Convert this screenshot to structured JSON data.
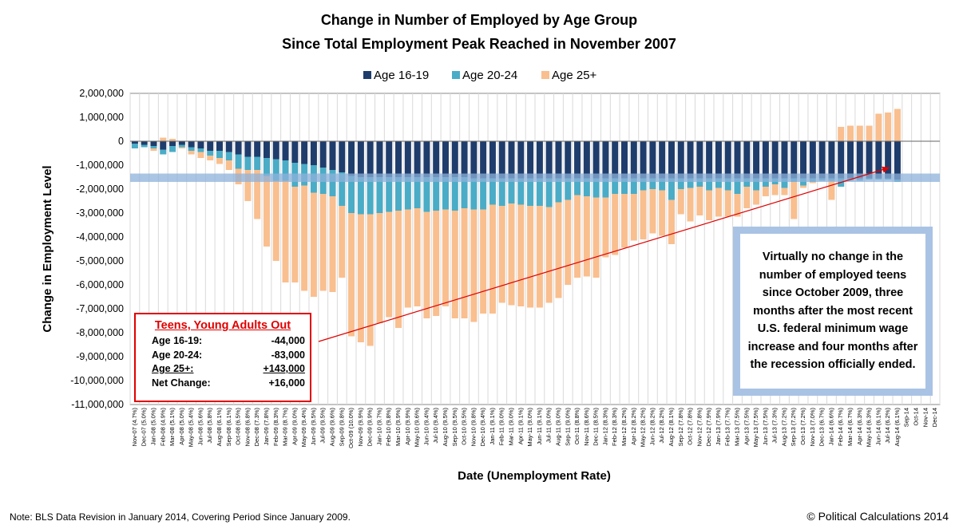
{
  "chart_data": {
    "type": "bar",
    "stacked": true,
    "title_lines": [
      "Change in Number of Employed by Age Group",
      "Since Total Employment Peak Reached in November 2007"
    ],
    "legend": [
      {
        "name": "Age 16-19",
        "color": "#1f3d6c"
      },
      {
        "name": "Age 20-24",
        "color": "#4aacc6"
      },
      {
        "name": "Age 25+",
        "color": "#f9bf8f"
      }
    ],
    "ylabel": "Change in Employment Level",
    "xlabel": "Date (Unemployment Rate)",
    "ylim": [
      -11000000,
      2000000
    ],
    "ytick_step": 1000000,
    "ytick_labels": [
      "2,000,000",
      "1,000,000",
      "0",
      "-1,000,000",
      "-2,000,000",
      "-3,000,000",
      "-4,000,000",
      "-5,000,000",
      "-6,000,000",
      "-7,000,000",
      "-8,000,000",
      "-9,000,000",
      "-10,000,000",
      "-11,000,000"
    ],
    "highlight_band": [
      -1700000,
      -1350000
    ],
    "categories": [
      "Nov-07 (4.7%)",
      "Dec-07 (5.0%)",
      "Jan-08 (5.0%)",
      "Feb-08 (4.9%)",
      "Mar-08 (5.1%)",
      "Apr-08 (5.0%)",
      "May-08 (5.4%)",
      "Jun-08 (5.6%)",
      "Jul-08 (5.8%)",
      "Aug-08 (6.1%)",
      "Sep-08 (6.1%)",
      "Oct-08 (6.5%)",
      "Nov-08 (6.8%)",
      "Dec-08 (7.3%)",
      "Jan-09 (7.8%)",
      "Feb-09 (8.3%)",
      "Mar-09 (8.7%)",
      "Apr-09 (9.0%)",
      "May-09 (9.4%)",
      "Jun-09 (9.5%)",
      "Jul-09 (9.5%)",
      "Aug-09 (9.6%)",
      "Sep-09 (9.8%)",
      "Oct-09 (10.0%)",
      "Nov-09 (9.9%)",
      "Dec-09 (9.9%)",
      "Jan-10 (9.7%)",
      "Feb-10 (9.8%)",
      "Mar-10 (9.9%)",
      "Apr-10 (9.9%)",
      "May-10 (9.6%)",
      "Jun-10 (9.4%)",
      "Jul-10 (9.4%)",
      "Aug-10 (9.5%)",
      "Sep-10 (9.5%)",
      "Oct-10 (9.5%)",
      "Nov-10 (9.8%)",
      "Dec-10 (9.4%)",
      "Jan-11 (9.1%)",
      "Feb-11 (9.0%)",
      "Mar-11 (9.0%)",
      "Apr-11 (9.1%)",
      "May-11 (9.0%)",
      "Jun-11 (9.1%)",
      "Jul-11 (9.0%)",
      "Aug-11 (9.0%)",
      "Sep-11 (9.0%)",
      "Oct-11 (8.8%)",
      "Nov-11 (8.6%)",
      "Dec-11 (8.5%)",
      "Jan-12 (8.3%)",
      "Feb-12 (8.3%)",
      "Mar-12 (8.2%)",
      "Apr-12 (8.2%)",
      "May-12 (8.2%)",
      "Jun-12 (8.2%)",
      "Jul-12 (8.2%)",
      "Aug-12 (8.1%)",
      "Sep-12 (7.8%)",
      "Oct-12 (7.8%)",
      "Nov-12 (7.8%)",
      "Dec-12 (7.9%)",
      "Jan-13 (7.9%)",
      "Feb-13 (7.7%)",
      "Mar-13 (7.5%)",
      "Apr-13 (7.5%)",
      "May-13 (7.5%)",
      "Jun-13 (7.5%)",
      "Jul-13 (7.3%)",
      "Aug-13 (7.2%)",
      "Sep-13 (7.2%)",
      "Oct-13 (7.2%)",
      "Nov-13 (7.0%)",
      "Dec-13 (6.7%)",
      "Jan-14 (6.6%)",
      "Feb-14 (6.7%)",
      "Mar-14 (6.7%)",
      "Apr-14 (6.3%)",
      "May-14 (6.3%)",
      "Jun-14 (6.1%)",
      "Jul-14 (6.2%)",
      "Aug-14 (6.1%)",
      "Sep-14",
      "Oct-14",
      "Nov-14",
      "Dec-14"
    ],
    "series": [
      {
        "name": "Age 16-19",
        "values": [
          -100000,
          -150000,
          -200000,
          -350000,
          -200000,
          -150000,
          -250000,
          -300000,
          -400000,
          -400000,
          -450000,
          -550000,
          -650000,
          -650000,
          -700000,
          -750000,
          -800000,
          -900000,
          -950000,
          -1000000,
          -1100000,
          -1200000,
          -1300000,
          -1450000,
          -1500000,
          -1500000,
          -1500000,
          -1500000,
          -1500000,
          -1500000,
          -1500000,
          -1500000,
          -1500000,
          -1500000,
          -1500000,
          -1500000,
          -1550000,
          -1550000,
          -1550000,
          -1550000,
          -1550000,
          -1550000,
          -1550000,
          -1550000,
          -1550000,
          -1550000,
          -1550000,
          -1550000,
          -1550000,
          -1550000,
          -1550000,
          -1550000,
          -1550000,
          -1550000,
          -1550000,
          -1550000,
          -1550000,
          -1550000,
          -1550000,
          -1550000,
          -1550000,
          -1550000,
          -1550000,
          -1550000,
          -1550000,
          -1550000,
          -1550000,
          -1550000,
          -1550000,
          -1550000,
          -1550000,
          -1550000,
          -1550000,
          -1550000,
          -1550000,
          -1550000,
          -1550000,
          -1550000,
          -1550000,
          -1550000,
          -1550000,
          -1600000,
          null,
          null,
          null,
          null
        ]
      },
      {
        "name": "Age 20-24",
        "values": [
          -200000,
          -100000,
          -100000,
          -200000,
          -250000,
          -100000,
          -150000,
          -150000,
          -200000,
          -300000,
          -350000,
          -600000,
          -550000,
          -550000,
          -750000,
          -900000,
          -850000,
          -1000000,
          -900000,
          -1150000,
          -1100000,
          -1100000,
          -1400000,
          -1550000,
          -1550000,
          -1550000,
          -1500000,
          -1450000,
          -1400000,
          -1350000,
          -1300000,
          -1450000,
          -1400000,
          -1350000,
          -1400000,
          -1300000,
          -1300000,
          -1300000,
          -1100000,
          -1150000,
          -1050000,
          -1100000,
          -1150000,
          -1150000,
          -1200000,
          -1000000,
          -900000,
          -700000,
          -750000,
          -800000,
          -800000,
          -650000,
          -650000,
          -650000,
          -500000,
          -450000,
          -500000,
          -900000,
          -450000,
          -400000,
          -350000,
          -500000,
          -400000,
          -500000,
          -650000,
          -350000,
          -500000,
          -350000,
          -250000,
          -400000,
          -150000,
          -300000,
          -150000,
          -100000,
          -100000,
          -350000,
          -100000,
          -100000,
          -50000,
          -50000,
          -50000,
          -100000,
          null,
          null,
          null,
          null
        ]
      },
      {
        "name": "Age 25+",
        "values": [
          0,
          0,
          -100000,
          150000,
          100000,
          -50000,
          -150000,
          -250000,
          -200000,
          -250000,
          -400000,
          -650000,
          -1300000,
          -2050000,
          -2950000,
          -3350000,
          -4250000,
          -4000000,
          -4400000,
          -4350000,
          -4050000,
          -4000000,
          -3000000,
          -5150000,
          -5350000,
          -5500000,
          -4600000,
          -4400000,
          -4900000,
          -4100000,
          -4100000,
          -4450000,
          -4400000,
          -4050000,
          -4500000,
          -4600000,
          -4700000,
          -4350000,
          -4550000,
          -4050000,
          -4250000,
          -4250000,
          -4250000,
          -4250000,
          -4000000,
          -4000000,
          -3550000,
          -3450000,
          -3350000,
          -3350000,
          -2500000,
          -2550000,
          -2250000,
          -1950000,
          -2050000,
          -1850000,
          -1900000,
          -1850000,
          -1050000,
          -1400000,
          -1200000,
          -1250000,
          -1200000,
          -1100000,
          -950000,
          -900000,
          -600000,
          -400000,
          -450000,
          -300000,
          -1550000,
          -100000,
          -50000,
          0,
          -800000,
          600000,
          650000,
          650000,
          650000,
          1150000,
          1200000,
          1350000,
          null,
          null,
          null,
          null
        ]
      }
    ],
    "trend_arrow": {
      "from_index": 28,
      "from_value": -8200000,
      "to_index": 80,
      "to_value": -1100000
    }
  },
  "callout": {
    "title": "Teens, Young Adults Out",
    "rows": [
      {
        "label": "Age 16-19:",
        "value": "-44,000"
      },
      {
        "label": "Age 20-24:",
        "value": "-83,000"
      },
      {
        "label": "Age 25+:",
        "value": "+143,000"
      },
      {
        "label": "Net Change:",
        "value": "+16,000"
      }
    ]
  },
  "annotation_text": "Virtually no change in the number of employed teens since October 2009, three months after the most recent U.S. federal minimum wage increase and four months after the recession officially ended.",
  "footnote": "Note: BLS Data Revision in January 2014, Covering Period Since January 2009.",
  "credit": "© Political Calculations 2014"
}
